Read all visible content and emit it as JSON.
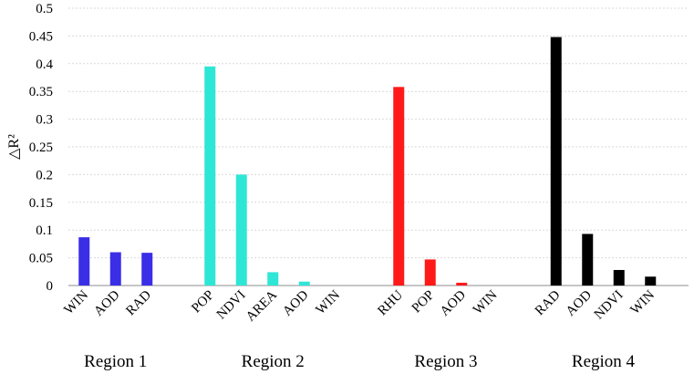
{
  "chart_data": {
    "type": "bar",
    "ylabel": "△R²",
    "ylim": [
      0,
      0.5
    ],
    "yticks": [
      0,
      0.05,
      0.1,
      0.15,
      0.2,
      0.25,
      0.3,
      0.35,
      0.4,
      0.45,
      0.5
    ],
    "ytick_labels": [
      "0",
      "0.05",
      "0.1",
      "0.15",
      "0.2",
      "0.25",
      "0.3",
      "0.35",
      "0.4",
      "0.45",
      "0.5"
    ],
    "grid": true,
    "groups": [
      {
        "name": "Region 1",
        "color": "#3a2ee6",
        "categories": [
          "WIN",
          "AOD",
          "RAD"
        ],
        "values": [
          0.087,
          0.06,
          0.059
        ]
      },
      {
        "name": "Region 2",
        "color": "#2ee6d6",
        "categories": [
          "POP",
          "NDVI",
          "AREA",
          "AOD",
          "WIN"
        ],
        "values": [
          0.395,
          0.2,
          0.024,
          0.007,
          0.0
        ]
      },
      {
        "name": "Region 3",
        "color": "#ff1a1a",
        "categories": [
          "RHU",
          "POP",
          "AOD",
          "WIN"
        ],
        "values": [
          0.358,
          0.047,
          0.005,
          0.0
        ]
      },
      {
        "name": "Region 4",
        "color": "#000000",
        "categories": [
          "RAD",
          "AOD",
          "NDVI",
          "WIN"
        ],
        "values": [
          0.448,
          0.093,
          0.028,
          0.016
        ]
      }
    ]
  }
}
